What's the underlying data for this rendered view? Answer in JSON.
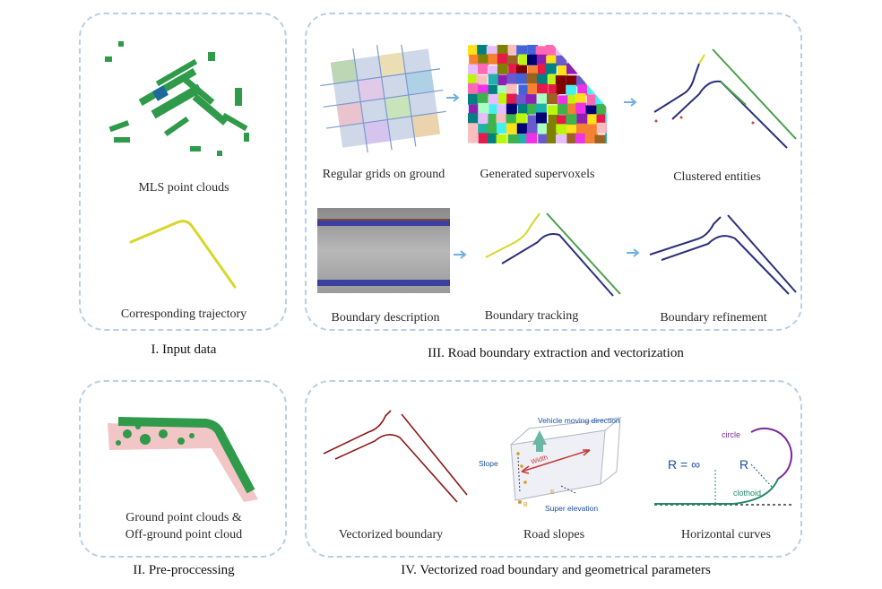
{
  "panel1": {
    "title": "I. Input data",
    "mls_caption": "MLS point clouds",
    "trajectory_caption": "Corresponding trajectory"
  },
  "panel2": {
    "title": "II. Pre-proccessing",
    "caption_line1": "Ground point clouds &",
    "caption_line2": "Off-ground point cloud"
  },
  "panel3": {
    "title": "III. Road boundary extraction and vectorization",
    "grids_caption": "Regular grids on ground",
    "supervoxels_caption": "Generated supervoxels",
    "clustered_caption": "Clustered entities",
    "description_caption": "Boundary description",
    "tracking_caption": "Boundary tracking",
    "refinement_caption": "Boundary refinement"
  },
  "panel4": {
    "title": "IV. Vectorized road boundary and geometrical parameters",
    "vectorized_caption": "Vectorized boundary",
    "slopes_caption": "Road slopes",
    "curves_caption": "Horizontal curves",
    "slope_labels": {
      "vehicle": "Vehicle moving direction",
      "slope": "Slope",
      "width": "Width",
      "super": "Super elevation",
      "b": "B",
      "e": "E"
    },
    "curve_labels": {
      "circle": "circle",
      "r_inf": "R = ∞",
      "r": "R",
      "clothoid": "clothoid"
    }
  },
  "colors": {
    "panel_border": "#b7cfe6",
    "point_green": "#2e9a4a",
    "trajectory_yellow": "#d9d62a",
    "boundary_dark": "#2b2f7a",
    "boundary_red": "#8b1a1a",
    "arrow_blue": "#6fb0df"
  }
}
